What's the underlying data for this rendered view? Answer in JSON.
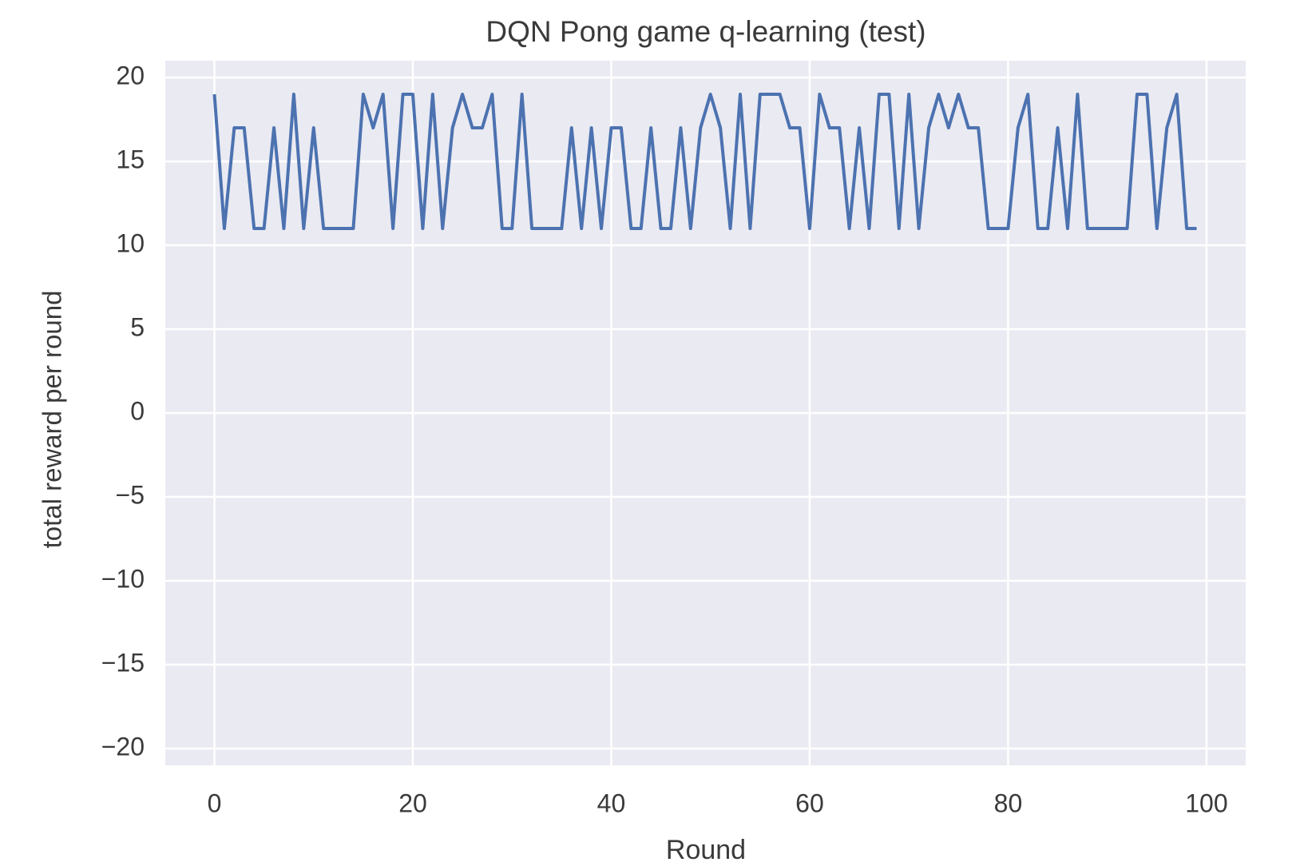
{
  "chart_data": {
    "type": "line",
    "title": "DQN Pong game q-learning (test)",
    "xlabel": "Round",
    "ylabel": "total reward per round",
    "x": [
      0,
      1,
      2,
      3,
      4,
      5,
      6,
      7,
      8,
      9,
      10,
      11,
      12,
      13,
      14,
      15,
      16,
      17,
      18,
      19,
      20,
      21,
      22,
      23,
      24,
      25,
      26,
      27,
      28,
      29,
      30,
      31,
      32,
      33,
      34,
      35,
      36,
      37,
      38,
      39,
      40,
      41,
      42,
      43,
      44,
      45,
      46,
      47,
      48,
      49,
      50,
      51,
      52,
      53,
      54,
      55,
      56,
      57,
      58,
      59,
      60,
      61,
      62,
      63,
      64,
      65,
      66,
      67,
      68,
      69,
      70,
      71,
      72,
      73,
      74,
      75,
      76,
      77,
      78,
      79,
      80,
      81,
      82,
      83,
      84,
      85,
      86,
      87,
      88,
      89,
      90,
      91,
      92,
      93,
      94,
      95,
      96,
      97,
      98,
      99
    ],
    "series": [
      {
        "color": "#4c72b0",
        "values": [
          19,
          11,
          17,
          17,
          11,
          11,
          17,
          11,
          19,
          11,
          17,
          11,
          11,
          11,
          11,
          19,
          17,
          19,
          11,
          19,
          19,
          11,
          19,
          11,
          17,
          19,
          17,
          17,
          19,
          11,
          11,
          19,
          11,
          11,
          11,
          11,
          17,
          11,
          17,
          11,
          17,
          17,
          11,
          11,
          17,
          11,
          11,
          17,
          11,
          17,
          19,
          17,
          11,
          19,
          11,
          19,
          19,
          19,
          17,
          17,
          11,
          19,
          17,
          17,
          11,
          17,
          11,
          19,
          19,
          11,
          19,
          11,
          17,
          19,
          17,
          19,
          17,
          17,
          11,
          11,
          11,
          17,
          19,
          11,
          11,
          17,
          11,
          19,
          11,
          11,
          11,
          11,
          11,
          19,
          19,
          11,
          17,
          19,
          11,
          11
        ]
      }
    ],
    "xlim": [
      -4.95,
      103.95
    ],
    "xticks": [
      0,
      20,
      40,
      60,
      80,
      100
    ],
    "ylim": [
      -21,
      21
    ],
    "yticks": [
      {
        "value": -20,
        "label": "−20"
      },
      {
        "value": -15,
        "label": "−15"
      },
      {
        "value": -10,
        "label": "−10"
      },
      {
        "value": -5,
        "label": "−5"
      },
      0,
      5,
      10,
      15,
      20
    ],
    "grid": true
  }
}
